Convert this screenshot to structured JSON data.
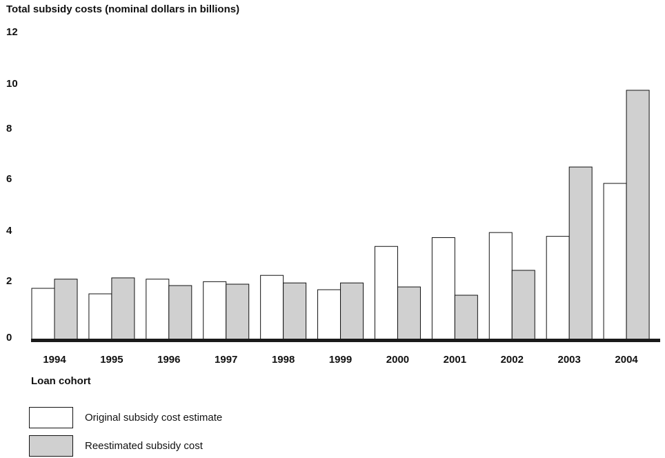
{
  "chart_data": {
    "type": "bar",
    "title": "",
    "ylabel": "Total subsidy costs (nominal dollars in billions)",
    "xlabel": "Loan cohort",
    "categories": [
      "1994",
      "1995",
      "1996",
      "1997",
      "1998",
      "1999",
      "2000",
      "2001",
      "2002",
      "2003",
      "2004"
    ],
    "series": [
      {
        "name": "Original subsidy cost estimate",
        "color": "#ffffff",
        "values": [
          1.85,
          1.65,
          2.2,
          2.1,
          2.35,
          1.8,
          3.5,
          3.85,
          4.05,
          3.9,
          5.95
        ]
      },
      {
        "name": "Reestimated subsidy cost",
        "color": "#d0d0d0",
        "values": [
          2.2,
          2.25,
          1.95,
          2.0,
          2.05,
          2.05,
          1.9,
          1.6,
          2.55,
          6.6,
          9.85
        ]
      }
    ],
    "yticks": [
      "0",
      "2",
      "4",
      "6",
      "8",
      "10",
      "12"
    ],
    "ylim": [
      0,
      12
    ],
    "grid": false,
    "legend_position": "bottom-left"
  }
}
